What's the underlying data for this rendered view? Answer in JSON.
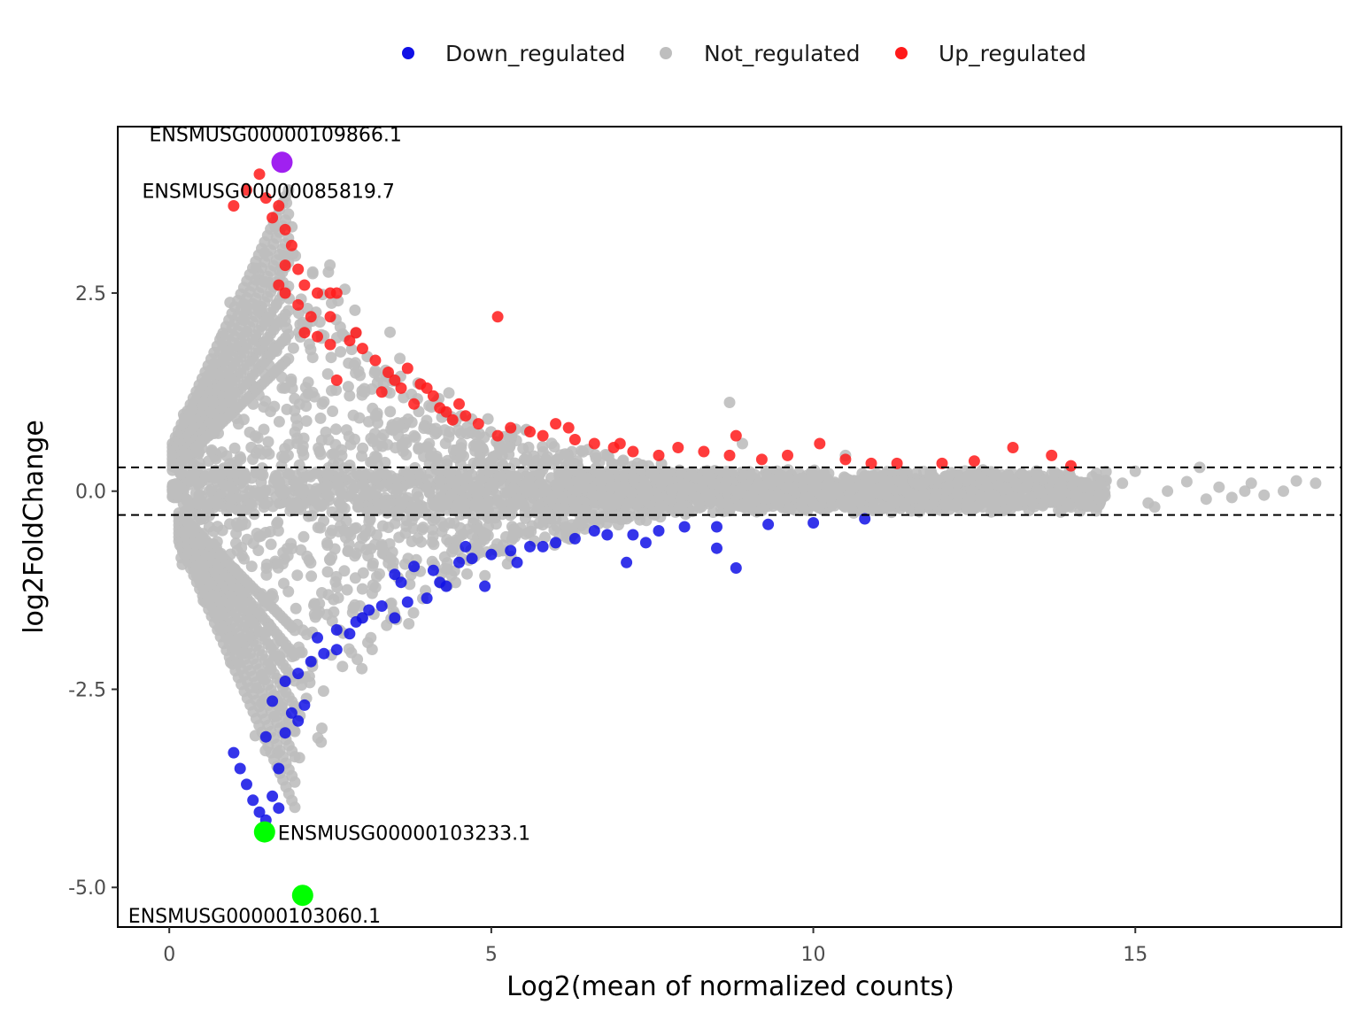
{
  "chart_data": {
    "type": "scatter",
    "title": "",
    "xlabel": "Log2(mean of normalized counts)",
    "ylabel": "log2FoldChange",
    "xlim": [
      -0.8,
      18.2
    ],
    "ylim": [
      -5.5,
      4.6
    ],
    "x_ticks": [
      0,
      5,
      10,
      15
    ],
    "x_tick_labels": [
      "0",
      "5",
      "10",
      "15"
    ],
    "y_ticks": [
      2.5,
      0,
      -2.5,
      -5
    ],
    "y_tick_labels": [
      "2.5",
      "0.0",
      "-2.5",
      "-5.0"
    ],
    "threshold_lines": [
      0.3,
      -0.3
    ],
    "grid": false,
    "legend_position": "top",
    "colors": {
      "Down_regulated": "#1010e6",
      "Not_regulated": "#bebebe",
      "Up_regulated": "#ff1a1a",
      "highlight_up": "#a020f0",
      "highlight_down": "#00ff00"
    },
    "series": [
      {
        "name": "Up_regulated",
        "points": [
          [
            1.0,
            3.6
          ],
          [
            1.2,
            3.8
          ],
          [
            1.4,
            4.0
          ],
          [
            1.5,
            3.7
          ],
          [
            1.6,
            3.45
          ],
          [
            1.7,
            3.6
          ],
          [
            1.8,
            3.3
          ],
          [
            1.9,
            3.1
          ],
          [
            1.8,
            2.85
          ],
          [
            2.0,
            2.8
          ],
          [
            1.7,
            2.6
          ],
          [
            2.1,
            2.6
          ],
          [
            2.3,
            2.5
          ],
          [
            2.5,
            2.5
          ],
          [
            2.6,
            2.5
          ],
          [
            1.8,
            2.5
          ],
          [
            2.0,
            2.35
          ],
          [
            2.2,
            2.2
          ],
          [
            2.5,
            2.2
          ],
          [
            2.1,
            2.0
          ],
          [
            2.3,
            1.95
          ],
          [
            2.5,
            1.85
          ],
          [
            2.9,
            2.0
          ],
          [
            3.0,
            1.8
          ],
          [
            3.2,
            1.65
          ],
          [
            3.4,
            1.5
          ],
          [
            2.6,
            1.4
          ],
          [
            3.3,
            1.25
          ],
          [
            3.6,
            1.3
          ],
          [
            3.9,
            1.35
          ],
          [
            4.1,
            1.2
          ],
          [
            4.3,
            1.0
          ],
          [
            4.5,
            1.1
          ],
          [
            4.6,
            0.95
          ],
          [
            4.8,
            0.85
          ],
          [
            5.1,
            0.7
          ],
          [
            5.3,
            0.8
          ],
          [
            5.6,
            0.75
          ],
          [
            5.8,
            0.7
          ],
          [
            6.0,
            0.85
          ],
          [
            6.3,
            0.65
          ],
          [
            6.6,
            0.6
          ],
          [
            6.9,
            0.55
          ],
          [
            7.2,
            0.5
          ],
          [
            7.6,
            0.45
          ],
          [
            7.9,
            0.55
          ],
          [
            8.3,
            0.5
          ],
          [
            8.7,
            0.45
          ],
          [
            8.8,
            0.7
          ],
          [
            9.2,
            0.4
          ],
          [
            9.6,
            0.45
          ],
          [
            10.1,
            0.6
          ],
          [
            10.5,
            0.4
          ],
          [
            10.9,
            0.35
          ],
          [
            11.3,
            0.35
          ],
          [
            12.0,
            0.35
          ],
          [
            12.5,
            0.38
          ],
          [
            13.1,
            0.55
          ],
          [
            13.7,
            0.45
          ],
          [
            14.0,
            0.32
          ],
          [
            3.7,
            1.55
          ],
          [
            4.2,
            1.05
          ],
          [
            5.1,
            2.2
          ],
          [
            3.8,
            1.1
          ],
          [
            6.2,
            0.8
          ],
          [
            7.0,
            0.6
          ],
          [
            3.5,
            1.4
          ],
          [
            2.8,
            1.9
          ],
          [
            4.0,
            1.3
          ],
          [
            4.4,
            0.9
          ]
        ]
      },
      {
        "name": "Down_regulated",
        "points": [
          [
            1.0,
            -3.3
          ],
          [
            1.1,
            -3.5
          ],
          [
            1.2,
            -3.7
          ],
          [
            1.3,
            -3.9
          ],
          [
            1.4,
            -4.05
          ],
          [
            1.5,
            -4.15
          ],
          [
            1.7,
            -4.0
          ],
          [
            1.6,
            -3.85
          ],
          [
            1.7,
            -3.5
          ],
          [
            1.5,
            -3.1
          ],
          [
            1.8,
            -3.05
          ],
          [
            1.9,
            -2.8
          ],
          [
            2.0,
            -2.9
          ],
          [
            2.1,
            -2.7
          ],
          [
            1.6,
            -2.65
          ],
          [
            1.8,
            -2.4
          ],
          [
            2.0,
            -2.3
          ],
          [
            2.2,
            -2.15
          ],
          [
            2.4,
            -2.05
          ],
          [
            2.6,
            -2.0
          ],
          [
            2.3,
            -1.85
          ],
          [
            2.6,
            -1.75
          ],
          [
            2.8,
            -1.8
          ],
          [
            3.0,
            -1.6
          ],
          [
            3.3,
            -1.45
          ],
          [
            3.5,
            -1.6
          ],
          [
            3.7,
            -1.4
          ],
          [
            4.0,
            -1.35
          ],
          [
            4.3,
            -1.2
          ],
          [
            4.1,
            -1.0
          ],
          [
            3.5,
            -1.05
          ],
          [
            3.8,
            -0.95
          ],
          [
            4.5,
            -0.9
          ],
          [
            4.7,
            -0.85
          ],
          [
            5.0,
            -0.8
          ],
          [
            5.3,
            -0.75
          ],
          [
            5.6,
            -0.7
          ],
          [
            6.0,
            -0.65
          ],
          [
            6.3,
            -0.6
          ],
          [
            6.8,
            -0.55
          ],
          [
            7.2,
            -0.55
          ],
          [
            7.6,
            -0.5
          ],
          [
            8.0,
            -0.45
          ],
          [
            8.5,
            -0.45
          ],
          [
            8.8,
            -0.97
          ],
          [
            8.5,
            -0.72
          ],
          [
            9.3,
            -0.42
          ],
          [
            10.0,
            -0.4
          ],
          [
            10.8,
            -0.35
          ],
          [
            3.6,
            -1.15
          ],
          [
            2.9,
            -1.65
          ],
          [
            4.2,
            -1.15
          ],
          [
            5.4,
            -0.9
          ],
          [
            7.1,
            -0.9
          ],
          [
            4.9,
            -1.2
          ],
          [
            3.1,
            -1.5
          ],
          [
            4.6,
            -0.7
          ],
          [
            6.6,
            -0.5
          ],
          [
            5.8,
            -0.7
          ],
          [
            7.4,
            -0.65
          ]
        ]
      },
      {
        "name": "highlight",
        "points": [
          [
            1.75,
            4.15
          ],
          [
            1.48,
            -4.3
          ],
          [
            2.07,
            -5.1
          ]
        ]
      }
    ],
    "annotations": [
      {
        "label": "ENSMUSG00000109866.1",
        "x": 1.75,
        "y": 4.15
      },
      {
        "label": "ENSMUSG00000085819.7",
        "x": 1.75,
        "y": 4.0
      },
      {
        "label": "ENSMUSG00000103233.1",
        "x": 1.48,
        "y": -4.3
      },
      {
        "label": "ENSMUSG00000103060.1",
        "x": 2.07,
        "y": -5.1
      }
    ],
    "legend": [
      {
        "label": "Down_regulated",
        "color": "#1010e6"
      },
      {
        "label": "Not_regulated",
        "color": "#bebebe"
      },
      {
        "label": "Up_regulated",
        "color": "#ff1a1a"
      }
    ]
  }
}
